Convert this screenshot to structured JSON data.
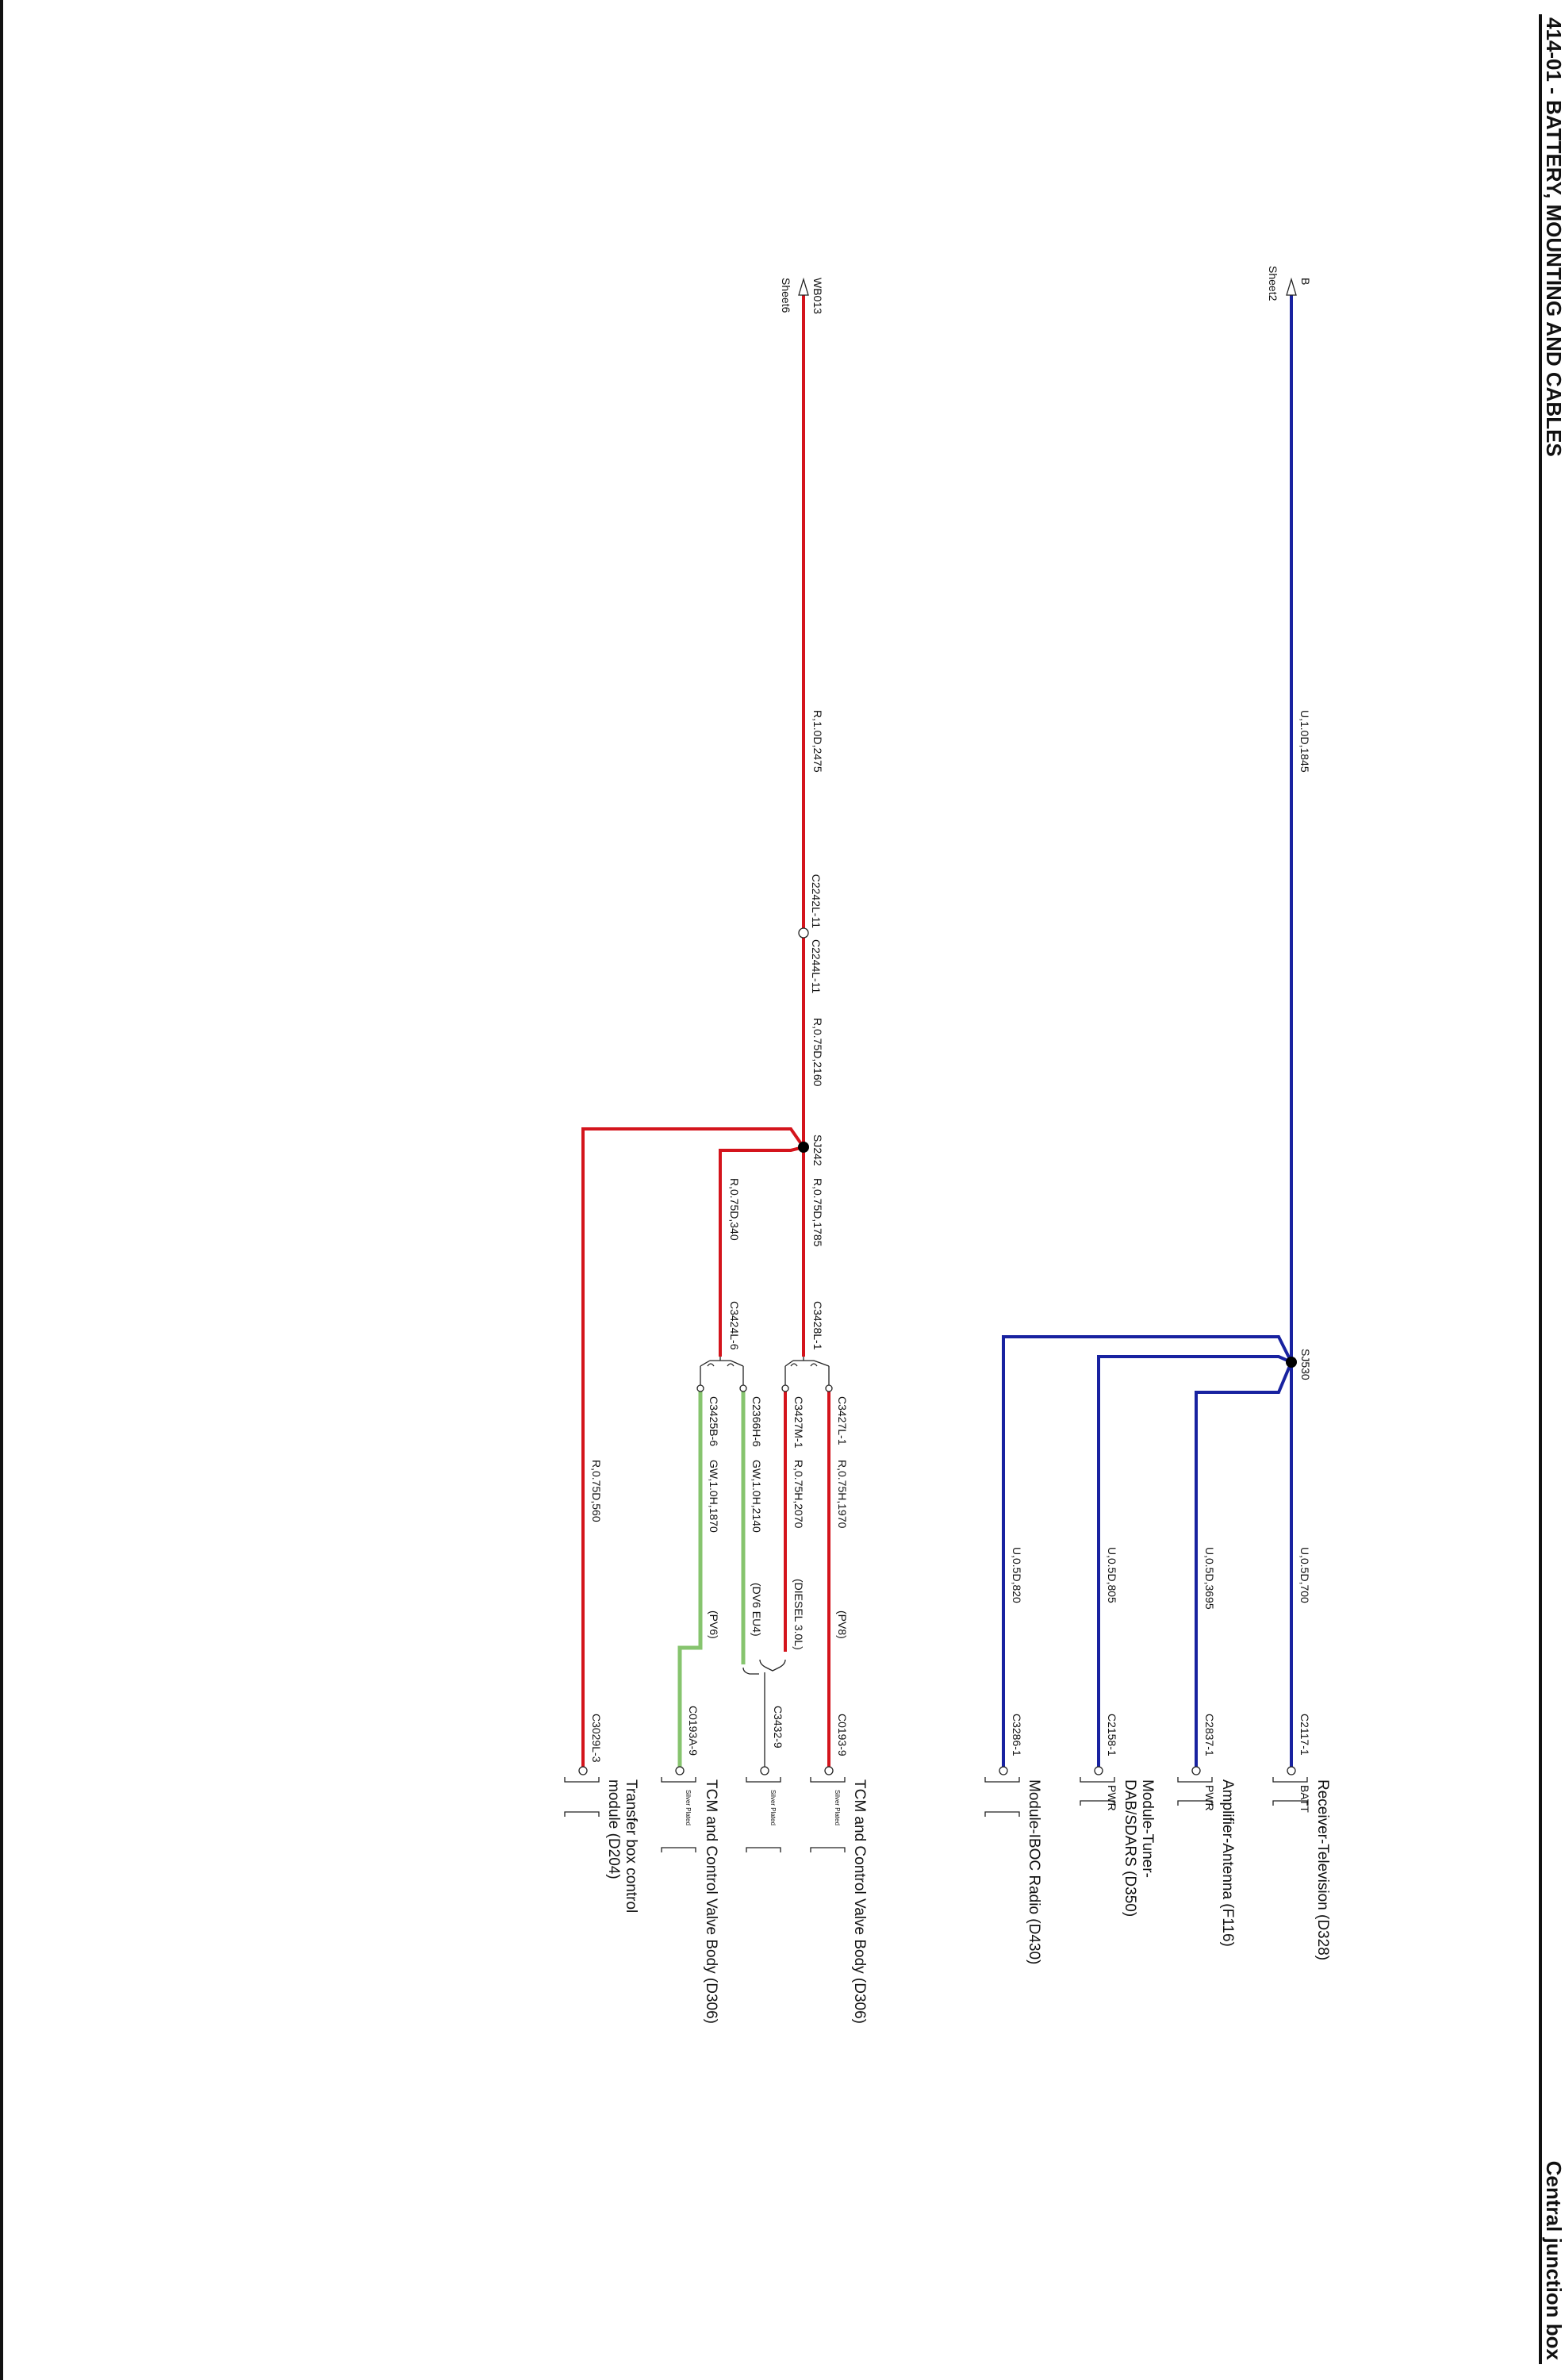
{
  "header": {
    "title": "414-01 - BATTERY, MOUNTING AND CABLES",
    "section": "Central junction box"
  },
  "colors": {
    "blue": "#1822a0",
    "red": "#d4141c",
    "green": "#86c46e"
  },
  "offsheet": {
    "b": {
      "ref": "B",
      "sheet": "Sheet2"
    },
    "wb013": {
      "ref": "WB013",
      "sheet": "Sheet6"
    }
  },
  "wires": {
    "u_1845": "U,1.0D,1845",
    "u_700": "U,0.5D,700",
    "u_3695": "U,0.5D,3695",
    "u_805": "U,0.5D,805",
    "u_820": "U,0.5D,820",
    "r_2475": "R,1.0D,2475",
    "r_2160": "R,0.75D,2160",
    "r_1785": "R,0.75D,1785",
    "r_340": "R,0.75D,340",
    "r_1970": "R,0.75H,1970",
    "r_2070": "R,0.75H,2070",
    "gw_2140": "GW,1.0H,2140",
    "gw_1870": "GW,1.0H,1870",
    "r_560": "R,0.75D,560"
  },
  "splices": {
    "sj530": "SJ530",
    "sj242": "SJ242"
  },
  "connectors": {
    "c2242l_11": "C2242L-11",
    "c2244l_11": "C2244L-11",
    "c3428l_1": "C3428L-1",
    "c3424l_6": "C3424L-6",
    "c3427l_1": "C3427L-1",
    "c3427m_1": "C3427M-1",
    "c2366h_6": "C2366H-6",
    "c3425b_6": "C3425B-6",
    "c2117_1": "C2117-1",
    "c2837_1": "C2837-1",
    "c2158_1": "C2158-1",
    "c3286_1": "C3286-1",
    "c0193_9": "C0193-9",
    "c3432_9": "C3432-9",
    "c0193a_9": "C0193A-9",
    "c3029l_3": "C3029L-3"
  },
  "options": {
    "pv8": "(PV8)",
    "diesel": "(DIESEL 3.0L)",
    "dv6": "(DV6 EU4)",
    "pv6": "(PV6)"
  },
  "components": {
    "receiver_tv": "Receiver-Television (D328)",
    "amplifier": "Amplifier-Antenna (F116)",
    "tuner_l1": "Module-Tuner-",
    "tuner_l2": "DAB/SDARS (D350)",
    "iboc": "Module-IBOC Radio (D430)",
    "tcm_1": "TCM and Control Valve Body (D306)",
    "tcm_2": "TCM and Control Valve Body (D306)",
    "transfer_l1": "Transfer box control",
    "transfer_l2": "module (D204)"
  },
  "pins": {
    "batt": "BATT",
    "pwr_amp": "PWR",
    "pwr_tuner": "PWR",
    "silver_1": "Silver Plated",
    "silver_2": "Silver Plated",
    "silver_3": "Silver Plated"
  }
}
